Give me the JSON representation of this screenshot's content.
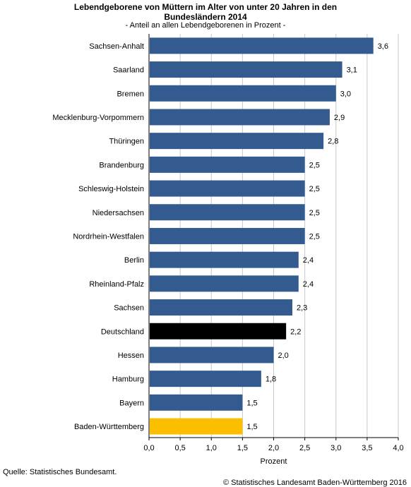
{
  "title_lines": [
    "Lebendgeborene von Müttern im Alter von unter 20 Jahren in den",
    "Bundesländern 2014"
  ],
  "subtitle": "- Anteil an allen Lebendgeborenen in Prozent -",
  "source": "Quelle: Statistisches Bundesamt.",
  "copyright": "© Statistisches Landesamt Baden-Württemberg 2016",
  "colors": {
    "default_bar": "#335b8f",
    "highlight_national": "#000000",
    "highlight_state": "#fcbf00",
    "grid": "#c8c8c8",
    "axis": "#000000"
  },
  "chart_data": {
    "type": "bar",
    "orientation": "horizontal",
    "categories": [
      "Sachsen-Anhalt",
      "Saarland",
      "Bremen",
      "Mecklenburg-Vorpommern",
      "Thüringen",
      "Brandenburg",
      "Schleswig-Holstein",
      "Niedersachsen",
      "Nordrhein-Westfalen",
      "Berlin",
      "Rheinland-Pfalz",
      "Sachsen",
      "Deutschland",
      "Hessen",
      "Hamburg",
      "Bayern",
      "Baden-Württemberg"
    ],
    "values": [
      3.6,
      3.1,
      3.0,
      2.9,
      2.8,
      2.5,
      2.5,
      2.5,
      2.5,
      2.4,
      2.4,
      2.3,
      2.2,
      2.0,
      1.8,
      1.5,
      1.5
    ],
    "value_labels": [
      "3,6",
      "3,1",
      "3,0",
      "2,9",
      "2,8",
      "2,5",
      "2,5",
      "2,5",
      "2,5",
      "2,4",
      "2,4",
      "2,3",
      "2,2",
      "2,0",
      "1,8",
      "1,5",
      "1,5"
    ],
    "bar_colors": {
      "Deutschland": "#000000",
      "Baden-Württemberg": "#fcbf00"
    },
    "xlabel": "Prozent",
    "xlim": [
      0,
      4.0
    ],
    "xticks": [
      0,
      0.5,
      1.0,
      1.5,
      2.0,
      2.5,
      3.0,
      3.5,
      4.0
    ],
    "xtick_labels": [
      "0,0",
      "0,5",
      "1,0",
      "1,5",
      "2,0",
      "2,5",
      "3,0",
      "3,5",
      "4,0"
    ],
    "grid": true
  }
}
